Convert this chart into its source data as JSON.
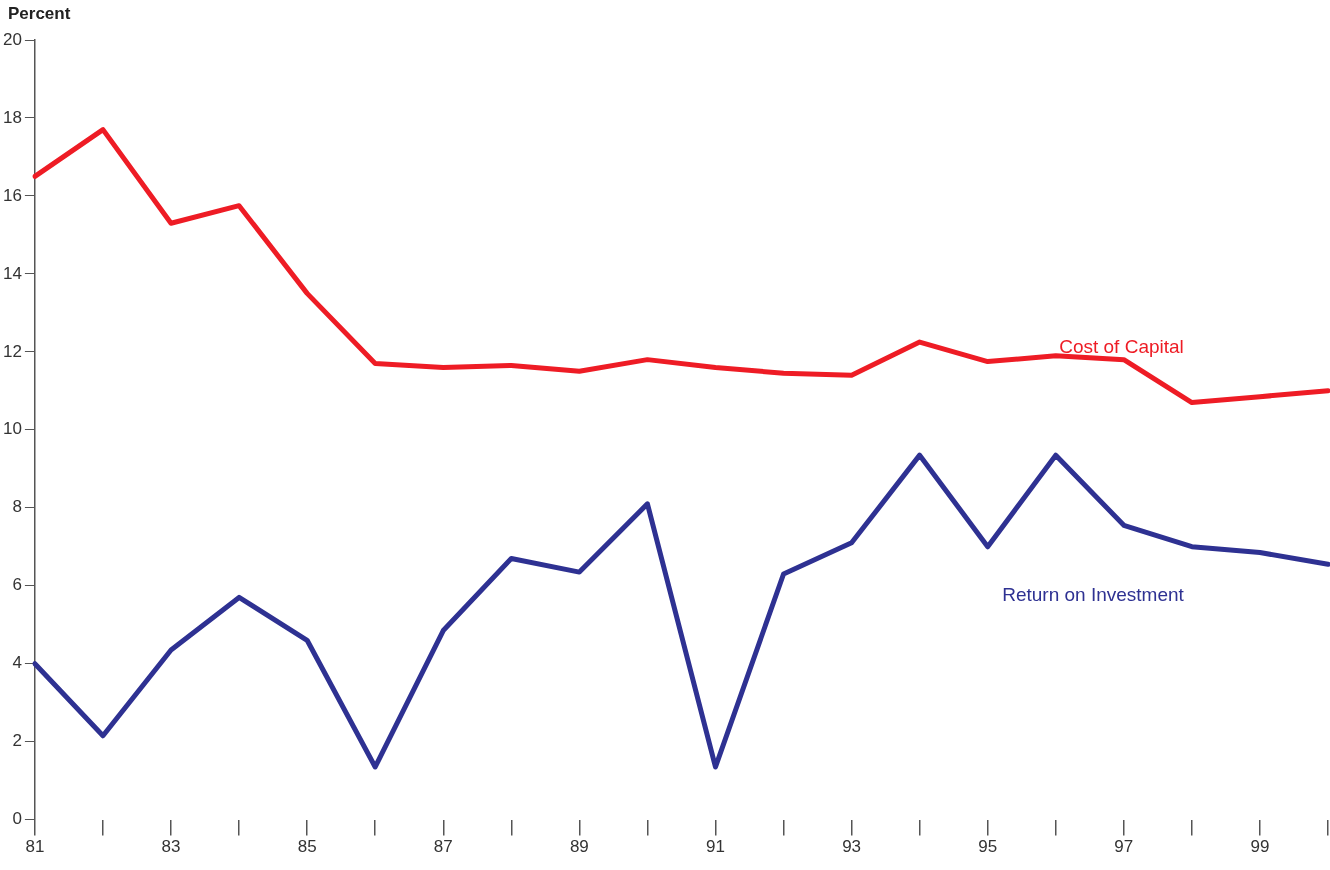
{
  "chart_data": {
    "type": "line",
    "ylabel": "Percent",
    "categories": [
      "81",
      null,
      "83",
      null,
      "85",
      null,
      "87",
      null,
      "89",
      null,
      "91",
      null,
      "93",
      null,
      "95",
      null,
      "97",
      null,
      "99",
      null
    ],
    "series": [
      {
        "name": "Cost of Capital",
        "color": "#ee1c25",
        "values": [
          16.5,
          17.7,
          15.3,
          15.75,
          13.5,
          11.7,
          11.6,
          11.65,
          11.5,
          11.8,
          11.6,
          11.45,
          11.4,
          12.25,
          11.75,
          11.9,
          11.8,
          10.7,
          10.85,
          11.0
        ]
      },
      {
        "name": "Return on Investment",
        "color": "#2e3192",
        "values": [
          4.0,
          2.15,
          4.35,
          5.7,
          4.6,
          1.35,
          4.85,
          6.7,
          6.35,
          8.1,
          1.35,
          6.3,
          7.1,
          9.35,
          7.0,
          9.35,
          7.55,
          7.0,
          6.85,
          6.55
        ]
      }
    ],
    "ylim": [
      0,
      20
    ],
    "yticks": [
      0,
      2,
      4,
      6,
      8,
      10,
      12,
      14,
      16,
      18,
      20
    ],
    "grid": false,
    "legend": false,
    "marker": "none",
    "line_style": "solid"
  }
}
